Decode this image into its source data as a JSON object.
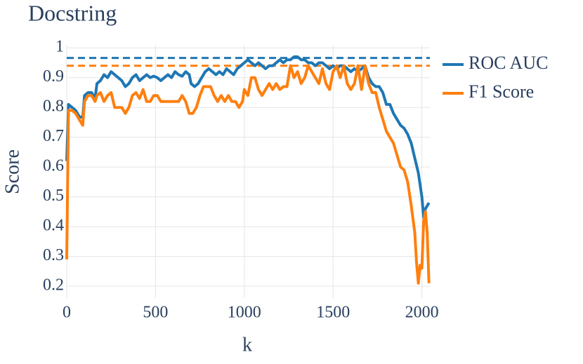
{
  "chart_data": {
    "type": "line",
    "title": "Docstring",
    "x_label": "k",
    "y_label": "Score",
    "xlim": [
      0,
      2045
    ],
    "xticks": [
      0,
      500,
      1000,
      1500,
      2000
    ],
    "ylim": [
      0.16,
      1.01
    ],
    "yticks": [
      0.2,
      0.3,
      0.4,
      0.5,
      0.6,
      0.7,
      0.8,
      0.9,
      1
    ],
    "grid": true,
    "legend": "right",
    "reference_lines": [
      {
        "value": 0.966,
        "color": "#1f77b4"
      },
      {
        "value": 0.94,
        "color": "#ff7f0e"
      }
    ],
    "series": [
      {
        "name": "ROC AUC",
        "color": "#1f77b4",
        "x": [
          0,
          10,
          30,
          50,
          70,
          90,
          100,
          120,
          140,
          160,
          170,
          190,
          210,
          230,
          250,
          270,
          290,
          310,
          330,
          350,
          370,
          390,
          410,
          430,
          450,
          470,
          490,
          510,
          530,
          550,
          570,
          590,
          610,
          630,
          650,
          670,
          690,
          700,
          720,
          740,
          760,
          780,
          800,
          820,
          840,
          860,
          880,
          900,
          920,
          940,
          960,
          980,
          1000,
          1020,
          1040,
          1060,
          1080,
          1100,
          1120,
          1140,
          1160,
          1180,
          1200,
          1220,
          1240,
          1260,
          1280,
          1300,
          1320,
          1340,
          1360,
          1380,
          1400,
          1420,
          1440,
          1460,
          1480,
          1500,
          1520,
          1540,
          1560,
          1580,
          1600,
          1620,
          1640,
          1660,
          1680,
          1700,
          1720,
          1740,
          1760,
          1780,
          1800,
          1820,
          1840,
          1860,
          1880,
          1900,
          1920,
          1940,
          1960,
          1980,
          2000,
          2010,
          2020,
          2040
        ],
        "values": [
          0.62,
          0.81,
          0.8,
          0.79,
          0.77,
          0.765,
          0.84,
          0.85,
          0.85,
          0.83,
          0.88,
          0.89,
          0.91,
          0.9,
          0.92,
          0.91,
          0.9,
          0.89,
          0.87,
          0.88,
          0.9,
          0.91,
          0.89,
          0.9,
          0.91,
          0.9,
          0.905,
          0.9,
          0.89,
          0.9,
          0.91,
          0.9,
          0.92,
          0.91,
          0.905,
          0.92,
          0.91,
          0.88,
          0.87,
          0.88,
          0.9,
          0.92,
          0.93,
          0.92,
          0.91,
          0.92,
          0.91,
          0.93,
          0.92,
          0.91,
          0.93,
          0.94,
          0.95,
          0.96,
          0.95,
          0.94,
          0.95,
          0.94,
          0.93,
          0.94,
          0.94,
          0.95,
          0.96,
          0.95,
          0.96,
          0.96,
          0.97,
          0.97,
          0.96,
          0.96,
          0.95,
          0.95,
          0.94,
          0.95,
          0.95,
          0.94,
          0.93,
          0.94,
          0.93,
          0.94,
          0.94,
          0.93,
          0.92,
          0.93,
          0.92,
          0.93,
          0.94,
          0.9,
          0.88,
          0.87,
          0.87,
          0.85,
          0.81,
          0.81,
          0.78,
          0.76,
          0.74,
          0.73,
          0.71,
          0.68,
          0.63,
          0.58,
          0.5,
          0.43,
          0.46,
          0.48
        ]
      },
      {
        "name": "F1 Score",
        "color": "#ff7f0e",
        "x": [
          0,
          10,
          30,
          50,
          70,
          90,
          100,
          120,
          140,
          160,
          170,
          190,
          210,
          230,
          250,
          270,
          290,
          310,
          330,
          350,
          370,
          390,
          410,
          430,
          450,
          470,
          490,
          510,
          530,
          550,
          570,
          590,
          610,
          630,
          650,
          670,
          690,
          710,
          730,
          750,
          770,
          790,
          810,
          830,
          850,
          870,
          890,
          910,
          930,
          950,
          970,
          990,
          1000,
          1020,
          1040,
          1060,
          1080,
          1100,
          1120,
          1140,
          1160,
          1180,
          1200,
          1220,
          1240,
          1260,
          1280,
          1300,
          1320,
          1340,
          1360,
          1380,
          1400,
          1420,
          1440,
          1460,
          1480,
          1500,
          1520,
          1540,
          1560,
          1580,
          1600,
          1620,
          1640,
          1660,
          1680,
          1700,
          1720,
          1740,
          1760,
          1780,
          1800,
          1820,
          1840,
          1860,
          1880,
          1900,
          1920,
          1940,
          1960,
          1970,
          1980,
          1990,
          2000,
          2010,
          2020,
          2030,
          2040
        ],
        "values": [
          0.29,
          0.79,
          0.79,
          0.78,
          0.76,
          0.74,
          0.82,
          0.84,
          0.84,
          0.82,
          0.84,
          0.85,
          0.82,
          0.84,
          0.85,
          0.8,
          0.8,
          0.8,
          0.78,
          0.8,
          0.84,
          0.85,
          0.83,
          0.86,
          0.82,
          0.82,
          0.84,
          0.84,
          0.82,
          0.82,
          0.82,
          0.82,
          0.82,
          0.82,
          0.84,
          0.82,
          0.78,
          0.78,
          0.8,
          0.84,
          0.87,
          0.87,
          0.87,
          0.84,
          0.82,
          0.84,
          0.82,
          0.84,
          0.82,
          0.82,
          0.8,
          0.82,
          0.86,
          0.84,
          0.9,
          0.9,
          0.86,
          0.84,
          0.86,
          0.88,
          0.86,
          0.88,
          0.86,
          0.87,
          0.87,
          0.94,
          0.9,
          0.92,
          0.88,
          0.9,
          0.94,
          0.92,
          0.9,
          0.88,
          0.93,
          0.88,
          0.86,
          0.92,
          0.94,
          0.9,
          0.94,
          0.88,
          0.86,
          0.88,
          0.94,
          0.86,
          0.94,
          0.88,
          0.85,
          0.85,
          0.8,
          0.76,
          0.72,
          0.7,
          0.68,
          0.64,
          0.6,
          0.59,
          0.55,
          0.47,
          0.38,
          0.28,
          0.21,
          0.27,
          0.26,
          0.42,
          0.45,
          0.38,
          0.21
        ]
      }
    ]
  }
}
